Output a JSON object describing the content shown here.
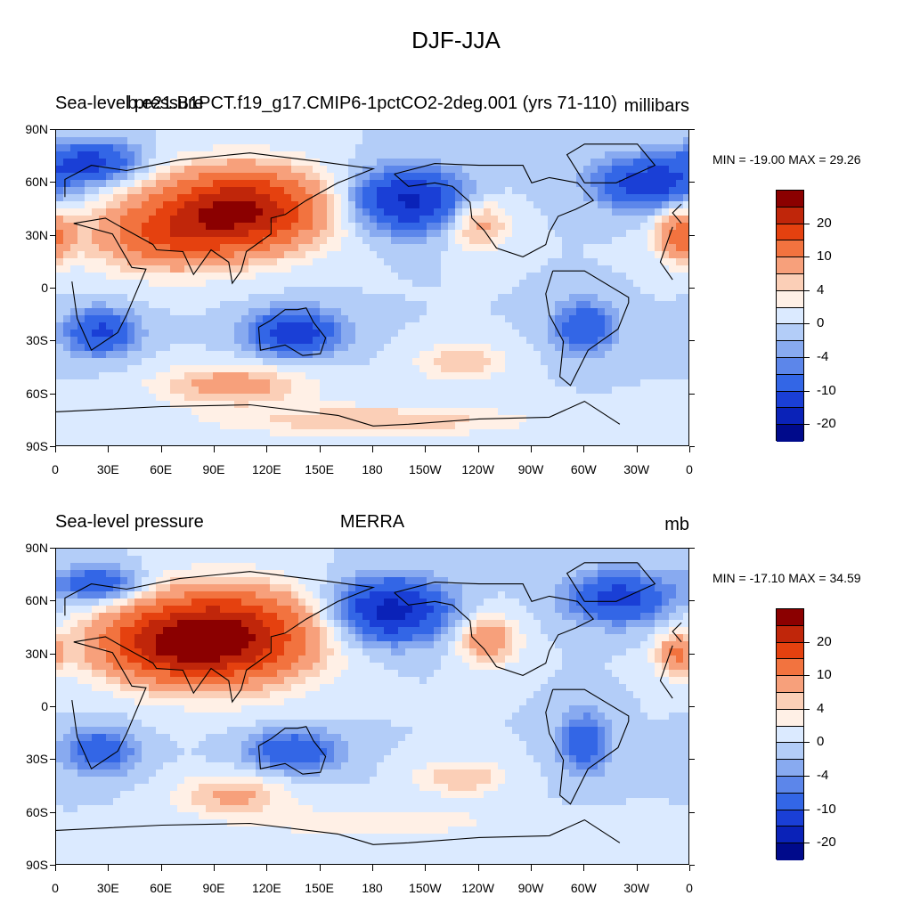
{
  "main_title": "DJF-JJA",
  "panels": [
    {
      "left_title": "Sea-level pressure",
      "center_title": "b.e21.B1PCT.f19_g17.CMIP6-1pctCO2-2deg.001 (yrs 71-110)",
      "right_title": "millibars",
      "stats": "MIN = -19.00 MAX =  29.26"
    },
    {
      "left_title": "Sea-level pressure",
      "center_title": "MERRA",
      "right_title": "mb",
      "stats": "MIN = -17.10 MAX =  34.59"
    }
  ],
  "lat_ticks": [
    "90N",
    "60N",
    "30N",
    "0",
    "30S",
    "60S",
    "90S"
  ],
  "lon_ticks": [
    "0",
    "30E",
    "60E",
    "90E",
    "120E",
    "150E",
    "180",
    "150W",
    "120W",
    "90W",
    "60W",
    "30W",
    "0"
  ],
  "colorbar": {
    "labels": [
      "20",
      "10",
      "4",
      "0",
      "-4",
      "-10",
      "-20"
    ],
    "colors": [
      "#8b0000",
      "#c0260a",
      "#e5410f",
      "#f2733f",
      "#f7a07b",
      "#fbcfb7",
      "#fff0e6",
      "#dbeaff",
      "#b3cdf8",
      "#88aaf0",
      "#5c86ea",
      "#3366e6",
      "#1a3fd6",
      "#0a22b8",
      "#000a8b"
    ]
  },
  "chart_data": [
    {
      "type": "heatmap",
      "title": "DJF-JJA",
      "left_label": "Sea-level pressure",
      "subtitle": "b.e21.B1PCT.f19_g17.CMIP6-1pctCO2-2deg.001 (yrs 71-110)",
      "units": "millibars",
      "min": -19.0,
      "max": 29.26,
      "contour_levels": [
        -20,
        -15,
        -10,
        -6,
        -4,
        -2,
        0,
        2,
        4,
        6,
        10,
        15,
        20,
        25
      ],
      "lon_range": [
        0,
        360
      ],
      "lat_range": [
        -90,
        90
      ],
      "features": [
        {
          "lon": 105,
          "lat": 45,
          "value": 25,
          "spread_lon": 32,
          "spread_lat": 16
        },
        {
          "lon": 60,
          "lat": 30,
          "value": 12,
          "spread_lon": 30,
          "spread_lat": 14
        },
        {
          "lon": 200,
          "lat": 50,
          "value": -16,
          "spread_lon": 22,
          "spread_lat": 12
        },
        {
          "lon": 335,
          "lat": 60,
          "value": -13,
          "spread_lon": 20,
          "spread_lat": 10
        },
        {
          "lon": 20,
          "lat": 72,
          "value": -12,
          "spread_lon": 18,
          "spread_lat": 8
        },
        {
          "lon": 240,
          "lat": 37,
          "value": 8,
          "spread_lon": 12,
          "spread_lat": 10
        },
        {
          "lon": 355,
          "lat": 30,
          "value": 12,
          "spread_lon": 10,
          "spread_lat": 10
        },
        {
          "lon": 135,
          "lat": -25,
          "value": -13,
          "spread_lon": 18,
          "spread_lat": 9
        },
        {
          "lon": 25,
          "lat": -25,
          "value": -11,
          "spread_lon": 14,
          "spread_lat": 9
        },
        {
          "lon": 300,
          "lat": -22,
          "value": -10,
          "spread_lon": 12,
          "spread_lat": 10
        },
        {
          "lon": 100,
          "lat": -55,
          "value": 8,
          "spread_lon": 30,
          "spread_lat": 8
        },
        {
          "lon": 230,
          "lat": -42,
          "value": 6,
          "spread_lon": 18,
          "spread_lat": 7
        },
        {
          "lon": 180,
          "lat": -75,
          "value": 6,
          "spread_lon": 60,
          "spread_lat": 6
        }
      ]
    },
    {
      "type": "heatmap",
      "title": "DJF-JJA",
      "left_label": "Sea-level pressure",
      "subtitle": "MERRA",
      "units": "mb",
      "min": -17.1,
      "max": 34.59,
      "contour_levels": [
        -20,
        -15,
        -10,
        -6,
        -4,
        -2,
        0,
        2,
        4,
        6,
        10,
        15,
        20,
        25
      ],
      "lon_range": [
        0,
        360
      ],
      "lat_range": [
        -90,
        90
      ],
      "features": [
        {
          "lon": 95,
          "lat": 40,
          "value": 27,
          "spread_lon": 34,
          "spread_lat": 18
        },
        {
          "lon": 55,
          "lat": 35,
          "value": 12,
          "spread_lon": 28,
          "spread_lat": 14
        },
        {
          "lon": 190,
          "lat": 55,
          "value": -17,
          "spread_lon": 22,
          "spread_lat": 12
        },
        {
          "lon": 320,
          "lat": 62,
          "value": -12,
          "spread_lon": 20,
          "spread_lat": 10
        },
        {
          "lon": 25,
          "lat": 70,
          "value": -10,
          "spread_lon": 16,
          "spread_lat": 7
        },
        {
          "lon": 245,
          "lat": 38,
          "value": 9,
          "spread_lon": 12,
          "spread_lat": 10
        },
        {
          "lon": 352,
          "lat": 30,
          "value": 10,
          "spread_lon": 8,
          "spread_lat": 8
        },
        {
          "lon": 135,
          "lat": -25,
          "value": -10,
          "spread_lon": 18,
          "spread_lat": 8
        },
        {
          "lon": 25,
          "lat": -25,
          "value": -9,
          "spread_lon": 14,
          "spread_lat": 9
        },
        {
          "lon": 300,
          "lat": -20,
          "value": -9,
          "spread_lon": 10,
          "spread_lat": 12
        },
        {
          "lon": 100,
          "lat": -50,
          "value": 7,
          "spread_lon": 22,
          "spread_lat": 8
        },
        {
          "lon": 230,
          "lat": -40,
          "value": 6,
          "spread_lon": 18,
          "spread_lat": 7
        },
        {
          "lon": 180,
          "lat": -65,
          "value": 4,
          "spread_lon": 50,
          "spread_lat": 6
        }
      ]
    }
  ]
}
